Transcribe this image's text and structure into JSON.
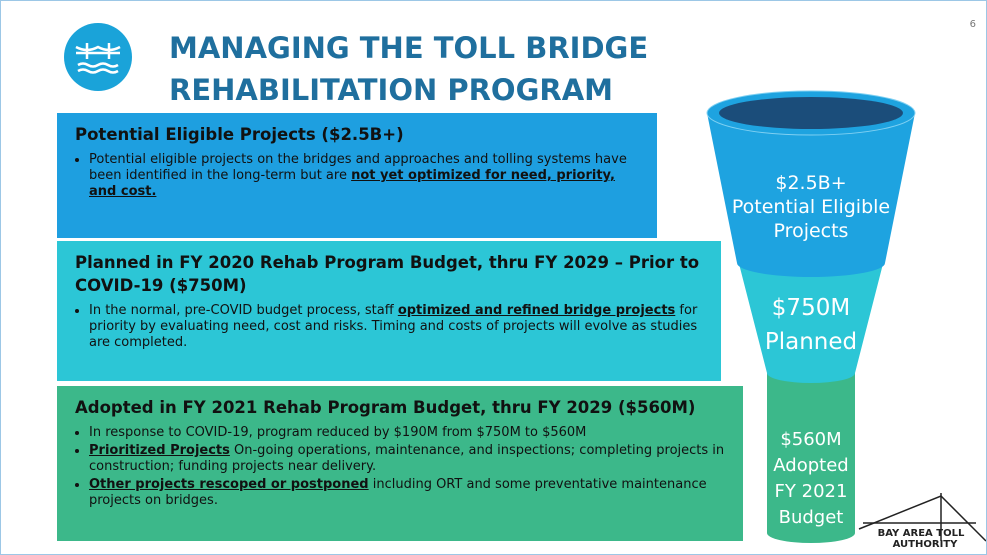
{
  "page_number": "6",
  "title": [
    "MANAGING THE TOLL BRIDGE",
    "REHABILITATION PROGRAM"
  ],
  "sections": [
    {
      "heading": "Potential Eligible Projects ($2.5B+)",
      "bullets": [
        [
          {
            "text": "Potential eligible projects on the bridges and approaches and tolling systems have been identified in the long-term but are "
          },
          {
            "text": "not yet optimized for need, priority, and cost.",
            "emphasis": true
          }
        ]
      ]
    },
    {
      "heading": "Planned in FY 2020 Rehab Program Budget, thru FY 2029 – Prior to COVID-19 ($750M)",
      "bullets": [
        [
          {
            "text": "In the normal, pre-COVID budget process, staff "
          },
          {
            "text": "optimized and refined bridge projects",
            "emphasis": true
          },
          {
            "text": " for priority by evaluating need, cost and risks. Timing and costs of projects will evolve as studies are completed."
          }
        ]
      ]
    },
    {
      "heading": "Adopted in FY 2021 Rehab Program Budget, thru FY 2029 ($560M)",
      "bullets": [
        [
          {
            "text": "In response to COVID-19, program reduced by $190M from $750M to $560M"
          }
        ],
        [
          {
            "text": "Prioritized Projects",
            "emphasis": true
          },
          {
            "text": " On-going operations, maintenance, and inspections; completing projects in construction; funding projects near delivery."
          }
        ],
        [
          {
            "text": "Other projects rescoped or postponed",
            "emphasis": true
          },
          {
            "text": " including ORT and some preventative maintenance projects on bridges."
          }
        ]
      ]
    }
  ],
  "funnel": [
    {
      "lines": [
        "$2.5B+",
        "Potential Eligible",
        "Projects"
      ]
    },
    {
      "lines": [
        "$750M",
        "Planned"
      ]
    },
    {
      "lines": [
        "$560M",
        "Adopted",
        "FY 2021",
        "Budget"
      ]
    }
  ],
  "logo": [
    "BAY AREA TOLL",
    "AUTHORITY"
  ]
}
